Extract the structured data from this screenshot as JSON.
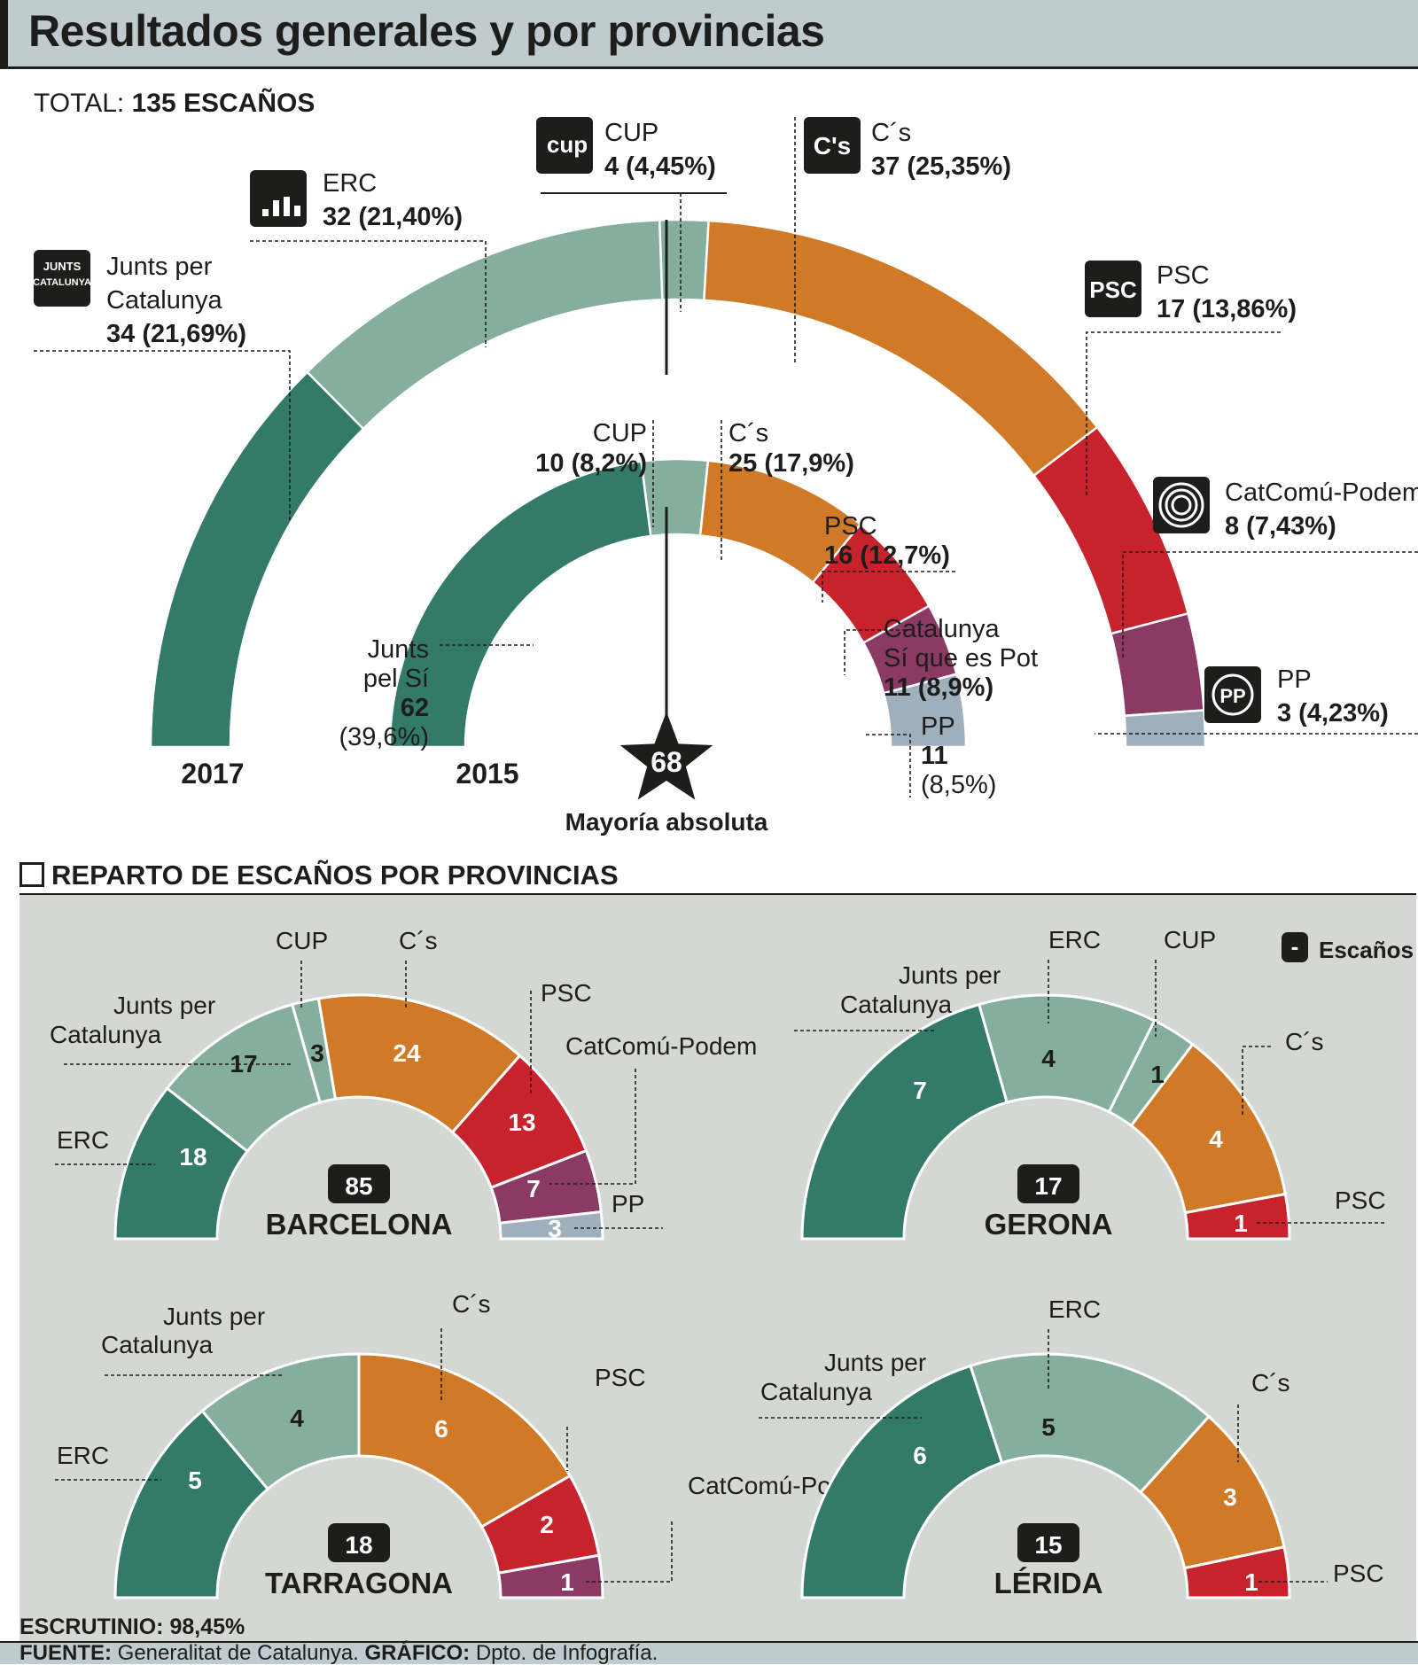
{
  "title": "Resultados generales y por provincias",
  "total_label": "TOTAL:",
  "total_value": "135 ESCAÑOS",
  "majority": {
    "value": "68",
    "label": "Mayoría absoluta"
  },
  "section_title": "REPARTO DE ESCAÑOS POR PROVINCIAS",
  "legend_escanos": "Escaños",
  "legend_dash": "-",
  "escrutinio": "ESCRUTINIO: 98,45%",
  "footer": {
    "fuente_label": "FUENTE:",
    "fuente_value": " Generalitat de Catalunya. ",
    "grafico_label": "GRÁFICO:",
    "grafico_value": " Dpto. de Infografía."
  },
  "colors": {
    "Junts": "#347a6b",
    "ERC": "#85ae9f",
    "CUP": "#85ae9f",
    "Cs": "#d07a27",
    "PSC": "#c8232c",
    "CatComu": "#8b3a63",
    "PP": "#9fb0bc"
  },
  "chart_data": [
    {
      "type": "parliament-arc",
      "year": "2017",
      "total": 135,
      "parties": [
        {
          "key": "Junts",
          "lines": [
            "Junts per",
            "Catalunya"
          ],
          "seats": 34,
          "pct": "21,69%",
          "label": "34 (21,69%)",
          "icon": "junts-logo-icon"
        },
        {
          "key": "ERC",
          "lines": [
            "ERC"
          ],
          "seats": 32,
          "pct": "21,40%",
          "label": "32 (21,40%)",
          "icon": "erc-logo-icon"
        },
        {
          "key": "CUP",
          "lines": [
            "CUP"
          ],
          "seats": 4,
          "pct": "4,45%",
          "label": "4 (4,45%)",
          "icon": "cup-logo-icon",
          "icon_text": "cup"
        },
        {
          "key": "Cs",
          "lines": [
            "C´s"
          ],
          "seats": 37,
          "pct": "25,35%",
          "label": "37 (25,35%)",
          "icon": "cs-logo-icon",
          "icon_text": "C's"
        },
        {
          "key": "PSC",
          "lines": [
            "PSC"
          ],
          "seats": 17,
          "pct": "13,86%",
          "label": "17 (13,86%)",
          "icon": "psc-logo-icon",
          "icon_text": "PSC"
        },
        {
          "key": "CatComu",
          "lines": [
            "CatComú-Podem"
          ],
          "seats": 8,
          "pct": "7,43%",
          "label": "8 (7,43%)",
          "icon": "catcomu-logo-icon"
        },
        {
          "key": "PP",
          "lines": [
            "PP"
          ],
          "seats": 3,
          "pct": "4,23%",
          "label": "3 (4,23%)",
          "icon": "pp-logo-icon",
          "icon_text": "PP"
        }
      ]
    },
    {
      "type": "parliament-arc",
      "year": "2015",
      "total": 135,
      "parties": [
        {
          "key": "Junts",
          "lines": [
            "Junts",
            "pel Sí"
          ],
          "seats": 62,
          "label": "62",
          "pct": "(39,6%)"
        },
        {
          "key": "CUP",
          "lines": [
            "CUP"
          ],
          "seats": 10,
          "label": "10 (8,2%)"
        },
        {
          "key": "Cs",
          "lines": [
            "C´s"
          ],
          "seats": 25,
          "label": "25 (17,9%)"
        },
        {
          "key": "PSC",
          "lines": [
            "PSC"
          ],
          "seats": 16,
          "label": "16 (12,7%)"
        },
        {
          "key": "CatComu",
          "lines": [
            "Catalunya",
            "Sí que es Pot"
          ],
          "seats": 11,
          "label": "11 (8,9%)"
        },
        {
          "key": "PP",
          "lines": [
            "PP"
          ],
          "seats": 11,
          "label": "11",
          "pct": "(8,5%)"
        }
      ]
    },
    {
      "type": "parliament-arc",
      "province": "BARCELONA",
      "total": 85,
      "parties": [
        {
          "key": "Junts",
          "name": "ERC",
          "lines": [
            "ERC"
          ],
          "seats": 18
        },
        {
          "key": "ERC",
          "name": "Junts per Catalunya",
          "lines": [
            "Junts per",
            "Catalunya"
          ],
          "seats": 17
        },
        {
          "key": "CUP",
          "name": "CUP",
          "lines": [
            "CUP"
          ],
          "seats": 3
        },
        {
          "key": "Cs",
          "name": "C´s",
          "lines": [
            "C´s"
          ],
          "seats": 24
        },
        {
          "key": "PSC",
          "name": "PSC",
          "lines": [
            "PSC"
          ],
          "seats": 13
        },
        {
          "key": "CatComu",
          "name": "CatComú-Podem",
          "lines": [
            "CatComú-Podem"
          ],
          "seats": 7
        },
        {
          "key": "PP",
          "name": "PP",
          "lines": [
            "PP"
          ],
          "seats": 3
        }
      ]
    },
    {
      "type": "parliament-arc",
      "province": "GERONA",
      "total": 17,
      "parties": [
        {
          "key": "Junts",
          "name": "Junts per Catalunya",
          "lines": [
            "Junts per",
            "Catalunya"
          ],
          "seats": 7
        },
        {
          "key": "ERC",
          "name": "ERC",
          "lines": [
            "ERC"
          ],
          "seats": 4
        },
        {
          "key": "CUP",
          "name": "CUP",
          "lines": [
            "CUP"
          ],
          "seats": 1
        },
        {
          "key": "Cs",
          "name": "C´s",
          "lines": [
            "C´s"
          ],
          "seats": 4
        },
        {
          "key": "PSC",
          "name": "PSC",
          "lines": [
            "PSC"
          ],
          "seats": 1
        }
      ]
    },
    {
      "type": "parliament-arc",
      "province": "TARRAGONA",
      "total": 18,
      "parties": [
        {
          "key": "Junts",
          "name": "ERC",
          "lines": [
            "ERC"
          ],
          "seats": 5
        },
        {
          "key": "ERC",
          "name": "Junts per Catalunya",
          "lines": [
            "Junts per",
            "Catalunya"
          ],
          "seats": 4
        },
        {
          "key": "Cs",
          "name": "C´s",
          "lines": [
            "C´s"
          ],
          "seats": 6
        },
        {
          "key": "PSC",
          "name": "PSC",
          "lines": [
            "PSC"
          ],
          "seats": 2
        },
        {
          "key": "CatComu",
          "name": "CatComú-Podem",
          "lines": [
            "CatComú-Podem"
          ],
          "seats": 1
        }
      ]
    },
    {
      "type": "parliament-arc",
      "province": "LÉRIDA",
      "total": 15,
      "parties": [
        {
          "key": "Junts",
          "name": "Junts per Catalunya",
          "lines": [
            "Junts per",
            "Catalunya"
          ],
          "seats": 6
        },
        {
          "key": "ERC",
          "name": "ERC",
          "lines": [
            "ERC"
          ],
          "seats": 5
        },
        {
          "key": "Cs",
          "name": "C´s",
          "lines": [
            "C´s"
          ],
          "seats": 3
        },
        {
          "key": "PSC",
          "name": "PSC",
          "lines": [
            "PSC"
          ],
          "seats": 1
        }
      ]
    }
  ]
}
